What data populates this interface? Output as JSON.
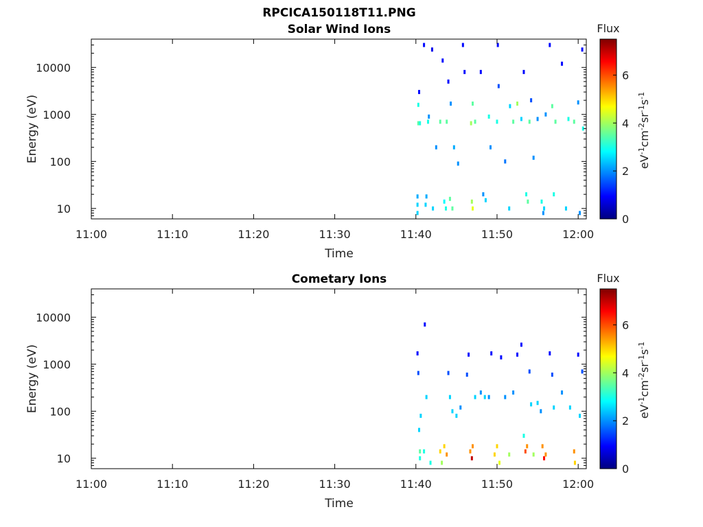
{
  "figure": {
    "title": "RPCICA150118T11.PNG"
  },
  "chart_data": [
    {
      "type": "heatmap",
      "title": "Solar Wind Ions",
      "xlabel": "Time",
      "ylabel": "Energy (eV)",
      "xticks": [
        "11:00",
        "11:10",
        "11:20",
        "11:30",
        "11:40",
        "11:50",
        "12:00"
      ],
      "xlim_minutes": [
        660,
        721
      ],
      "yscale": "log",
      "ylim": [
        6,
        40000
      ],
      "yticks": [
        10,
        100,
        1000,
        10000
      ],
      "ytick_labels": [
        "10",
        "100",
        "1000",
        "10000"
      ],
      "colorbar": {
        "title": "Flux",
        "unit_label": "eV-1cm-2sr-1s-1",
        "range": [
          0,
          7.5
        ],
        "ticks": [
          0,
          2,
          4,
          6
        ],
        "tick_labels": [
          "0",
          "2",
          "4",
          "6"
        ]
      },
      "grid": false,
      "series": [
        {
          "values": [
            [
              700.2,
              8,
              2.5
            ],
            [
              700.2,
              12,
              2.5
            ],
            [
              700.2,
              18,
              2.2
            ],
            [
              700.3,
              650,
              3.5
            ],
            [
              700.3,
              1600,
              3.0
            ],
            [
              700.4,
              3000,
              1.0
            ],
            [
              700.5,
              650,
              3.0
            ],
            [
              701.0,
              30000,
              1.0
            ],
            [
              701.2,
              12,
              2.5
            ],
            [
              701.3,
              18,
              2.2
            ],
            [
              701.5,
              700,
              3.0
            ],
            [
              701.6,
              900,
              2.0
            ],
            [
              702.0,
              24000,
              0.8
            ],
            [
              702.1,
              10,
              2.5
            ],
            [
              702.5,
              200,
              2.0
            ],
            [
              703.0,
              700,
              3.5
            ],
            [
              703.3,
              14000,
              1.0
            ],
            [
              703.5,
              14,
              2.8
            ],
            [
              703.7,
              10,
              3.0
            ],
            [
              703.8,
              700,
              3.5
            ],
            [
              704.0,
              5000,
              1.0
            ],
            [
              704.2,
              16,
              3.5
            ],
            [
              704.3,
              1700,
              2.0
            ],
            [
              704.5,
              10,
              3.5
            ],
            [
              704.7,
              200,
              2.2
            ],
            [
              705.2,
              90,
              2.0
            ],
            [
              705.8,
              30000,
              1.0
            ],
            [
              706.0,
              8000,
              1.0
            ],
            [
              706.8,
              650,
              4.0
            ],
            [
              706.9,
              14,
              4.0
            ],
            [
              707.0,
              10,
              4.5
            ],
            [
              707.0,
              1700,
              3.5
            ],
            [
              707.3,
              700,
              3.5
            ],
            [
              708.0,
              8000,
              1.0
            ],
            [
              708.3,
              20,
              2.0
            ],
            [
              708.6,
              15,
              2.5
            ],
            [
              709.0,
              900,
              3.0
            ],
            [
              709.2,
              200,
              2.0
            ],
            [
              710.0,
              700,
              3.0
            ],
            [
              710.1,
              30000,
              1.0
            ],
            [
              710.2,
              4000,
              1.5
            ],
            [
              711.0,
              100,
              1.8
            ],
            [
              711.5,
              10,
              2.5
            ],
            [
              711.6,
              1500,
              2.5
            ],
            [
              712.0,
              700,
              3.5
            ],
            [
              712.5,
              1700,
              4.0
            ],
            [
              713.0,
              800,
              2.5
            ],
            [
              713.3,
              8000,
              1.0
            ],
            [
              713.6,
              20,
              3.0
            ],
            [
              713.8,
              14,
              3.5
            ],
            [
              714.0,
              700,
              3.5
            ],
            [
              714.2,
              2000,
              1.5
            ],
            [
              714.5,
              120,
              2.0
            ],
            [
              715.0,
              800,
              2.0
            ],
            [
              715.5,
              14,
              3.0
            ],
            [
              715.7,
              8,
              2.0
            ],
            [
              715.8,
              10,
              2.5
            ],
            [
              716.0,
              1000,
              2.0
            ],
            [
              716.5,
              30000,
              1.0
            ],
            [
              716.8,
              1500,
              3.5
            ],
            [
              717.0,
              20,
              3.0
            ],
            [
              717.2,
              700,
              3.5
            ],
            [
              718.0,
              12000,
              1.0
            ],
            [
              718.5,
              10,
              2.5
            ],
            [
              718.8,
              800,
              3.0
            ],
            [
              719.5,
              700,
              3.5
            ],
            [
              720.0,
              1800,
              2.0
            ],
            [
              720.2,
              8,
              2.0
            ],
            [
              720.5,
              24000,
              1.0
            ],
            [
              720.6,
              500,
              3.0
            ]
          ]
        }
      ]
    },
    {
      "type": "heatmap",
      "title": "Cometary Ions",
      "xlabel": "Time",
      "ylabel": "Energy (eV)",
      "xticks": [
        "11:00",
        "11:10",
        "11:20",
        "11:30",
        "11:40",
        "11:50",
        "12:00"
      ],
      "xlim_minutes": [
        660,
        721
      ],
      "yscale": "log",
      "ylim": [
        6,
        40000
      ],
      "yticks": [
        10,
        100,
        1000,
        10000
      ],
      "ytick_labels": [
        "10",
        "100",
        "1000",
        "10000"
      ],
      "colorbar": {
        "title": "Flux",
        "unit_label": "eV-1cm-2sr-1s-1",
        "range": [
          0,
          7.5
        ],
        "ticks": [
          0,
          2,
          4,
          6
        ],
        "tick_labels": [
          "0",
          "2",
          "4",
          "6"
        ]
      },
      "grid": false,
      "series": [
        {
          "values": [
            [
              700.2,
              1700,
              1.0
            ],
            [
              700.3,
              650,
              1.5
            ],
            [
              700.4,
              40,
              2.5
            ],
            [
              700.5,
              10,
              3.0
            ],
            [
              700.5,
              14,
              3.5
            ],
            [
              700.6,
              80,
              2.5
            ],
            [
              701.0,
              14,
              3.0
            ],
            [
              701.1,
              7000,
              1.0
            ],
            [
              701.3,
              200,
              2.5
            ],
            [
              701.8,
              8,
              3.0
            ],
            [
              703.0,
              14,
              5.0
            ],
            [
              703.2,
              8,
              4.0
            ],
            [
              703.5,
              18,
              5.0
            ],
            [
              703.8,
              12,
              5.5
            ],
            [
              704.0,
              650,
              1.5
            ],
            [
              704.2,
              200,
              2.5
            ],
            [
              704.5,
              100,
              2.5
            ],
            [
              705.0,
              80,
              2.5
            ],
            [
              705.5,
              120,
              2.0
            ],
            [
              706.3,
              600,
              1.5
            ],
            [
              706.5,
              1600,
              1.0
            ],
            [
              706.7,
              14,
              5.5
            ],
            [
              706.9,
              10,
              7.0
            ],
            [
              707.0,
              18,
              5.5
            ],
            [
              707.3,
              200,
              2.5
            ],
            [
              708.0,
              250,
              2.0
            ],
            [
              708.5,
              200,
              2.5
            ],
            [
              709.0,
              200,
              2.0
            ],
            [
              709.3,
              1700,
              1.0
            ],
            [
              709.7,
              12,
              5.0
            ],
            [
              710.0,
              18,
              5.0
            ],
            [
              710.3,
              8,
              4.5
            ],
            [
              710.5,
              1400,
              1.0
            ],
            [
              711.0,
              200,
              2.0
            ],
            [
              711.5,
              12,
              4.0
            ],
            [
              712.0,
              250,
              2.0
            ],
            [
              712.5,
              1600,
              1.0
            ],
            [
              713.0,
              2600,
              1.0
            ],
            [
              713.3,
              30,
              3.0
            ],
            [
              713.5,
              14,
              6.0
            ],
            [
              713.7,
              18,
              5.5
            ],
            [
              714.0,
              700,
              1.5
            ],
            [
              714.2,
              140,
              2.5
            ],
            [
              714.5,
              12,
              4.0
            ],
            [
              715.0,
              150,
              2.5
            ],
            [
              715.4,
              100,
              2.0
            ],
            [
              715.6,
              18,
              5.5
            ],
            [
              715.8,
              10,
              6.5
            ],
            [
              716.0,
              12,
              5.5
            ],
            [
              716.5,
              1700,
              1.0
            ],
            [
              716.8,
              600,
              1.5
            ],
            [
              717.0,
              120,
              2.5
            ],
            [
              718.0,
              250,
              2.0
            ],
            [
              719.0,
              120,
              2.5
            ],
            [
              719.5,
              14,
              5.5
            ],
            [
              719.6,
              8,
              5.0
            ],
            [
              720.0,
              1600,
              1.0
            ],
            [
              720.2,
              80,
              2.5
            ],
            [
              720.5,
              700,
              1.5
            ]
          ]
        }
      ]
    }
  ]
}
